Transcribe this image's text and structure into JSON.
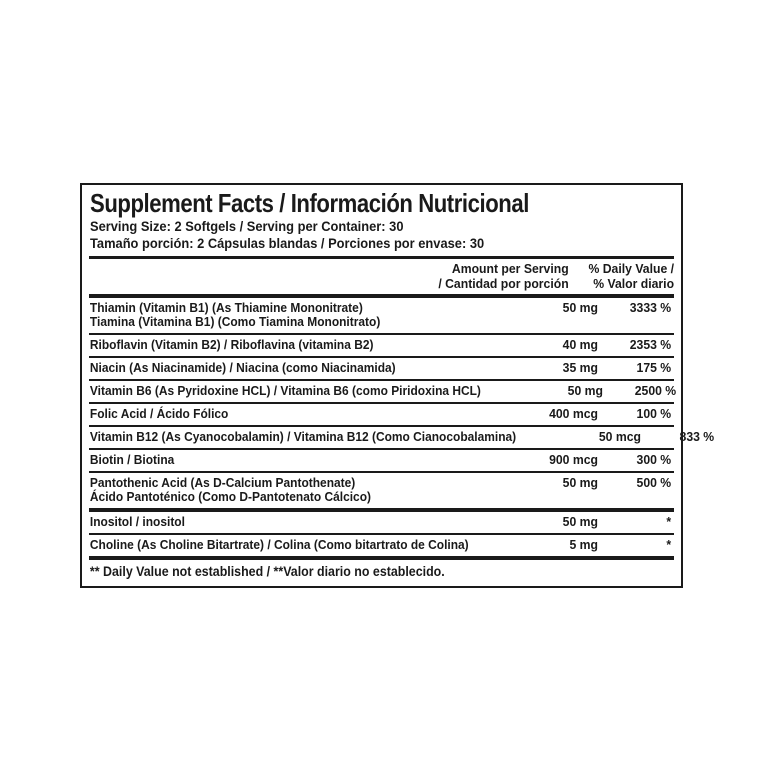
{
  "colors": {
    "text": "#1a1a1a",
    "background": "#ffffff",
    "border": "#1a1a1a"
  },
  "label": {
    "title": "Supplement Facts / Información Nutricional",
    "serving_line_en": "Serving Size: 2 Softgels / Serving per Container: 30",
    "serving_line_es": "Tamaño porción: 2 Cápsulas blandas / Porciones por envase: 30",
    "header": {
      "amount_line1": "Amount per Serving",
      "amount_line2": "/ Cantidad por porción",
      "dv_line1": "% Daily Value /",
      "dv_line2": "% Valor diario"
    },
    "rows": [
      {
        "name": "Thiamin (Vitamin B1) (As Thiamine Mononitrate)",
        "name2": "Tiamina (Vitamina B1) (Como Tiamina Mononitrato)",
        "amount": "50 mg",
        "dv": "3333 %"
      },
      {
        "name": "Riboflavin (Vitamin B2) / Riboflavina (vitamina B2)",
        "amount": "40 mg",
        "dv": "2353 %"
      },
      {
        "name": "Niacin (As Niacinamide) / Niacina (como Niacinamida)",
        "amount": "35 mg",
        "dv": "175 %"
      },
      {
        "name": "Vitamin B6 (As Pyridoxine HCL) / Vitamina B6 (como Piridoxina HCL)",
        "amount": "50 mg",
        "dv": "2500 %"
      },
      {
        "name": "Folic Acid / Ácido Fólico",
        "amount": "400 mcg",
        "dv": "100 %"
      },
      {
        "name": "Vitamin B12 (As Cyanocobalamin) / Vitamina B12 (Como Cianocobalamina)",
        "amount": "50 mcg",
        "dv": "833 %"
      },
      {
        "name": "Biotin / Biotina",
        "amount": "900 mcg",
        "dv": "300 %"
      },
      {
        "name": "Pantothenic Acid (As D-Calcium Pantothenate)",
        "name2": "Ácido Pantoténico (Como D-Pantotenato Cálcico)",
        "amount": "50 mg",
        "dv": "500 %"
      },
      {
        "name": "Inositol / inositol",
        "amount": "50 mg",
        "dv": "*"
      },
      {
        "name": "Choline (As Choline Bitartrate) / Colina (Como bitartrato de Colina)",
        "amount": "5 mg",
        "dv": "*"
      }
    ],
    "footnote": "** Daily Value not established / **Valor diario no establecido."
  }
}
